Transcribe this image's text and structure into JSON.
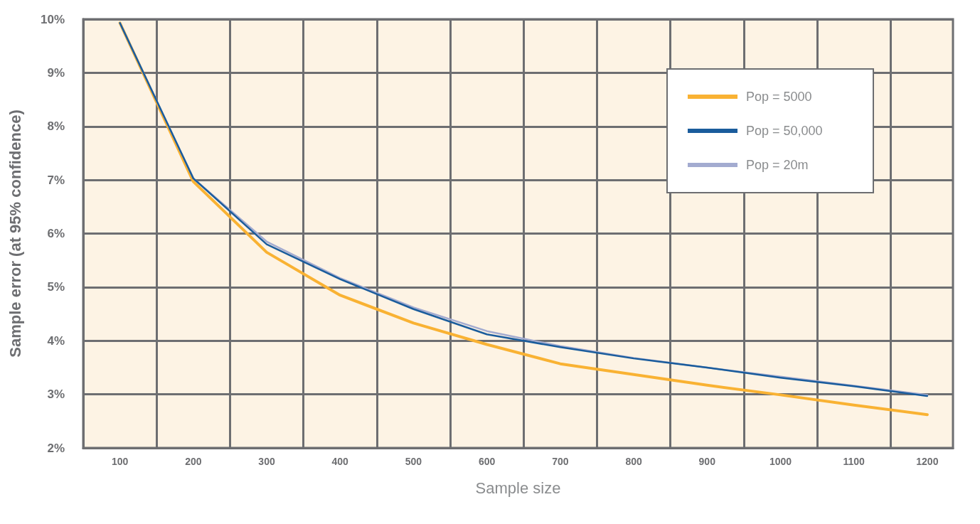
{
  "chart_data": {
    "type": "line",
    "xlabel": "Sample size",
    "ylabel": "Sample error (at 95% confidence)",
    "x": [
      100,
      200,
      300,
      400,
      500,
      600,
      700,
      800,
      900,
      1000,
      1100,
      1200
    ],
    "series": [
      {
        "name": "Pop = 5000",
        "color": "#f9b233",
        "values": [
          9.93,
          6.97,
          5.65,
          4.85,
          4.33,
          3.93,
          3.57,
          3.37,
          3.17,
          2.99,
          2.8,
          2.62
        ]
      },
      {
        "name": "Pop = 50,000",
        "color": "#1a5c9c",
        "values": [
          9.93,
          7.03,
          5.8,
          5.15,
          4.59,
          4.12,
          3.88,
          3.67,
          3.5,
          3.31,
          3.15,
          2.97
        ]
      },
      {
        "name": "Pop = 20m",
        "color": "#a3abd0",
        "values": [
          9.93,
          7.03,
          5.85,
          5.17,
          4.62,
          4.18,
          3.9,
          3.68,
          3.5,
          3.33,
          3.16,
          2.99
        ]
      }
    ],
    "xlim": [
      50,
      1235
    ],
    "xticks": [
      100,
      {
        "value": 150,
        "label": null
      },
      200,
      {
        "value": 250,
        "label": null
      },
      300,
      {
        "value": 350,
        "label": null
      },
      400,
      {
        "value": 450,
        "label": null
      },
      500,
      {
        "value": 550,
        "label": null
      },
      600,
      {
        "value": 650,
        "label": null
      },
      700,
      {
        "value": 750,
        "label": null
      },
      800,
      {
        "value": 850,
        "label": null
      },
      900,
      {
        "value": 950,
        "label": null
      },
      1000,
      {
        "value": 1050,
        "label": null
      },
      1100,
      {
        "value": 1150,
        "label": null
      },
      1200
    ],
    "ylim": [
      2,
      10
    ],
    "yticks": [
      {
        "value": 2,
        "label": "2%"
      },
      {
        "value": 3,
        "label": "3%"
      },
      {
        "value": 4,
        "label": "4%"
      },
      {
        "value": 5,
        "label": "5%"
      },
      {
        "value": 6,
        "label": "6%"
      },
      {
        "value": 7,
        "label": "7%"
      },
      {
        "value": 8,
        "label": "8%"
      },
      {
        "value": 9,
        "label": "9%"
      },
      {
        "value": 10,
        "label": "10%"
      }
    ],
    "grid": true,
    "legend": "top right",
    "marker": "none",
    "line_style": "solid"
  }
}
